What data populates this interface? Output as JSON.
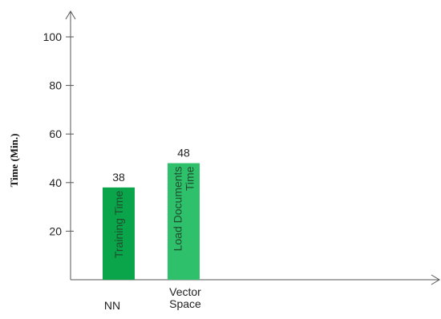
{
  "chart_data": {
    "type": "bar",
    "ylabel": "Time (Min.)",
    "xlabel": "",
    "ylim": [
      0,
      100
    ],
    "yticks": [
      20,
      40,
      60,
      80,
      100
    ],
    "grid": false,
    "categories": [
      "NN",
      "Vector Space"
    ],
    "category_lines": [
      [
        "NN"
      ],
      [
        "Vector",
        "Space"
      ]
    ],
    "values": [
      38,
      48
    ],
    "bar_labels": [
      [
        "Training Time"
      ],
      [
        "Load Documents",
        "Time"
      ]
    ],
    "colors": [
      "#0aa44a",
      "#2ec06a"
    ]
  }
}
